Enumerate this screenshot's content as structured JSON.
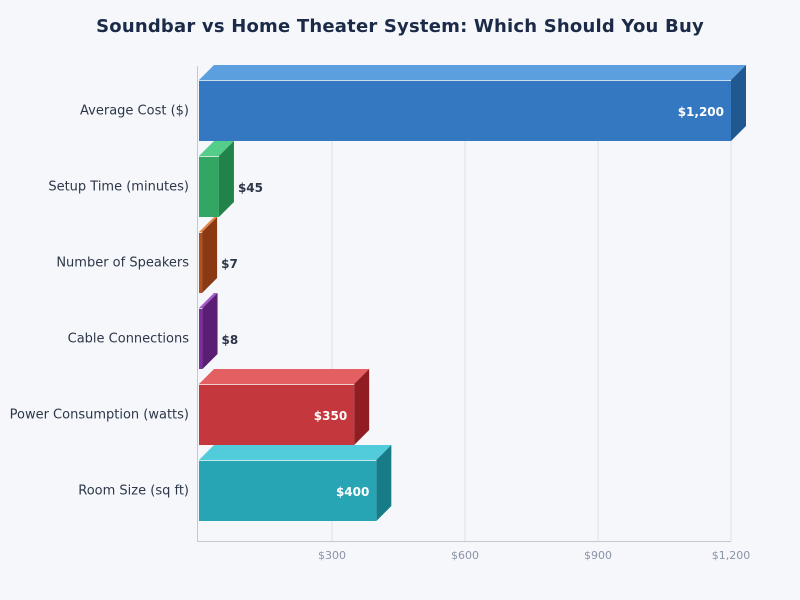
{
  "title": "Soundbar vs Home Theater System: Which Should You Buy",
  "chart_data": {
    "type": "bar",
    "orientation": "horizontal",
    "style": "3d",
    "title": "Soundbar vs Home Theater System: Which Should You Buy",
    "xlabel": "",
    "ylabel": "",
    "categories": [
      "Average Cost ($)",
      "Setup Time (minutes)",
      "Number of Speakers",
      "Cable Connections",
      "Power Consumption (watts)",
      "Room Size (sq ft)"
    ],
    "values": [
      1200,
      45,
      7,
      8,
      350,
      400
    ],
    "value_labels": [
      "$1,200",
      "$45",
      "$7",
      "$8",
      "$350",
      "$400"
    ],
    "colors": [
      "#3478c1",
      "#33a664",
      "#b54f1d",
      "#7a2f9b",
      "#c4373d",
      "#27a5b4"
    ],
    "top_colors": [
      "#5b9fdf",
      "#55cd8a",
      "#e8884c",
      "#a45bc8",
      "#e35f62",
      "#52ccda"
    ],
    "side_colors": [
      "#215892",
      "#22834a",
      "#8a3912",
      "#5a1e75",
      "#8f1d22",
      "#177c88"
    ],
    "xlim": [
      0,
      1200
    ],
    "x_ticks": [
      300,
      600,
      900,
      1200
    ],
    "x_tick_labels": [
      "$300",
      "$600",
      "$900",
      "$1,200"
    ],
    "grid": true,
    "legend": null
  }
}
